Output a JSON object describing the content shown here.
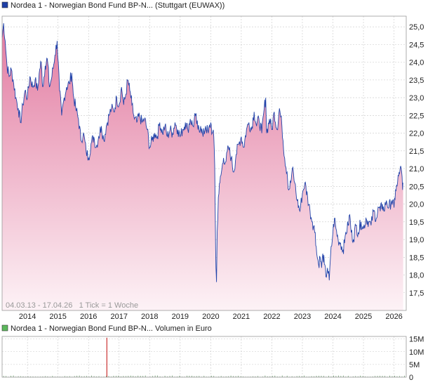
{
  "price_panel": {
    "legend_text": "Nordea 1 - Norwegian Bond Fund BP-N... (Stuttgart (EUWAX))",
    "legend_color": "#1f3fa6",
    "footer_text": "04.03.13 - 17.04.26   1 Tick = 1 Woche"
  },
  "volume_panel": {
    "legend_text": "Nordea 1 - Norwegian Bond Fund BP-N... Volumen in Euro",
    "legend_color": "#5cb85c"
  },
  "colors": {
    "line": "#2244aa",
    "fill_top": "#e27aa0",
    "fill_bottom": "#fdf2f6",
    "grid": "#c8c8c8",
    "volume_bar": "#cc3333",
    "volume_bar_small": "#669966"
  },
  "chart_data": [
    {
      "type": "area",
      "x_tick_labels": [
        "2014",
        "2015",
        "2016",
        "2017",
        "2018",
        "2019",
        "2020",
        "2021",
        "2022",
        "2023",
        "2024",
        "2025",
        "2026"
      ],
      "y_tick_labels": [
        "17,5",
        "18,0",
        "18,5",
        "19,0",
        "19,5",
        "20,0",
        "20,5",
        "21,0",
        "21,5",
        "22,0",
        "22,5",
        "23,0",
        "23,5",
        "24,0",
        "24,5",
        "25,0"
      ],
      "y_ticks": [
        17.5,
        18.0,
        18.5,
        19.0,
        19.5,
        20.0,
        20.5,
        21.0,
        21.5,
        22.0,
        22.5,
        23.0,
        23.5,
        24.0,
        24.5,
        25.0
      ],
      "ylim": [
        17.0,
        25.3
      ],
      "xlim": [
        2013.17,
        2026.4
      ],
      "grid": true,
      "series": [
        {
          "points": [
            [
              2013.17,
              24.7
            ],
            [
              2013.22,
              25.1
            ],
            [
              2013.27,
              24.6
            ],
            [
              2013.33,
              23.9
            ],
            [
              2013.4,
              23.6
            ],
            [
              2013.47,
              23.8
            ],
            [
              2013.55,
              23.4
            ],
            [
              2013.62,
              23.0
            ],
            [
              2013.7,
              22.7
            ],
            [
              2013.77,
              22.3
            ],
            [
              2013.85,
              22.8
            ],
            [
              2013.92,
              23.2
            ],
            [
              2014.0,
              23.0
            ],
            [
              2014.08,
              23.6
            ],
            [
              2014.17,
              23.3
            ],
            [
              2014.25,
              23.5
            ],
            [
              2014.33,
              23.2
            ],
            [
              2014.4,
              23.8
            ],
            [
              2014.45,
              24.0
            ],
            [
              2014.5,
              23.3
            ],
            [
              2014.58,
              23.9
            ],
            [
              2014.65,
              24.1
            ],
            [
              2014.72,
              23.3
            ],
            [
              2014.8,
              23.6
            ],
            [
              2014.9,
              24.2
            ],
            [
              2014.97,
              24.6
            ],
            [
              2015.05,
              23.2
            ],
            [
              2015.12,
              22.5
            ],
            [
              2015.2,
              23.0
            ],
            [
              2015.28,
              23.3
            ],
            [
              2015.37,
              23.4
            ],
            [
              2015.45,
              23.7
            ],
            [
              2015.5,
              23.1
            ],
            [
              2015.58,
              22.7
            ],
            [
              2015.67,
              22.4
            ],
            [
              2015.75,
              21.8
            ],
            [
              2015.83,
              22.0
            ],
            [
              2015.92,
              21.5
            ],
            [
              2016.0,
              21.3
            ],
            [
              2016.08,
              21.7
            ],
            [
              2016.17,
              21.9
            ],
            [
              2016.25,
              21.6
            ],
            [
              2016.33,
              21.9
            ],
            [
              2016.42,
              22.2
            ],
            [
              2016.5,
              21.8
            ],
            [
              2016.58,
              22.2
            ],
            [
              2016.67,
              22.5
            ],
            [
              2016.75,
              22.7
            ],
            [
              2016.83,
              22.6
            ],
            [
              2016.92,
              23.0
            ],
            [
              2017.0,
              22.8
            ],
            [
              2017.08,
              23.3
            ],
            [
              2017.15,
              22.8
            ],
            [
              2017.22,
              23.1
            ],
            [
              2017.28,
              23.5
            ],
            [
              2017.35,
              23.2
            ],
            [
              2017.42,
              22.8
            ],
            [
              2017.5,
              22.4
            ],
            [
              2017.58,
              22.3
            ],
            [
              2017.67,
              22.5
            ],
            [
              2017.75,
              22.3
            ],
            [
              2017.83,
              22.4
            ],
            [
              2017.92,
              22.1
            ],
            [
              2018.0,
              21.6
            ],
            [
              2018.08,
              21.8
            ],
            [
              2018.17,
              22.0
            ],
            [
              2018.25,
              21.9
            ],
            [
              2018.33,
              22.3
            ],
            [
              2018.42,
              22.0
            ],
            [
              2018.5,
              22.2
            ],
            [
              2018.58,
              21.9
            ],
            [
              2018.67,
              22.1
            ],
            [
              2018.75,
              22.0
            ],
            [
              2018.83,
              22.3
            ],
            [
              2018.92,
              22.1
            ],
            [
              2019.0,
              21.9
            ],
            [
              2019.08,
              22.1
            ],
            [
              2019.17,
              22.3
            ],
            [
              2019.25,
              22.1
            ],
            [
              2019.33,
              22.4
            ],
            [
              2019.42,
              22.2
            ],
            [
              2019.5,
              22.5
            ],
            [
              2019.58,
              22.1
            ],
            [
              2019.67,
              22.2
            ],
            [
              2019.75,
              21.9
            ],
            [
              2019.83,
              22.2
            ],
            [
              2019.92,
              22.0
            ],
            [
              2020.0,
              22.3
            ],
            [
              2020.05,
              22.0
            ],
            [
              2020.1,
              21.9
            ],
            [
              2020.13,
              21.1
            ],
            [
              2020.15,
              19.5
            ],
            [
              2020.17,
              18.2
            ],
            [
              2020.19,
              17.8
            ],
            [
              2020.21,
              19.2
            ],
            [
              2020.25,
              20.2
            ],
            [
              2020.3,
              20.6
            ],
            [
              2020.35,
              20.9
            ],
            [
              2020.42,
              21.3
            ],
            [
              2020.5,
              21.2
            ],
            [
              2020.58,
              21.6
            ],
            [
              2020.67,
              21.3
            ],
            [
              2020.75,
              20.9
            ],
            [
              2020.83,
              21.4
            ],
            [
              2020.92,
              21.7
            ],
            [
              2021.0,
              21.9
            ],
            [
              2021.08,
              21.6
            ],
            [
              2021.17,
              22.1
            ],
            [
              2021.25,
              22.3
            ],
            [
              2021.33,
              22.1
            ],
            [
              2021.42,
              22.6
            ],
            [
              2021.5,
              22.2
            ],
            [
              2021.58,
              22.4
            ],
            [
              2021.67,
              22.0
            ],
            [
              2021.75,
              22.7
            ],
            [
              2021.8,
              23.0
            ],
            [
              2021.83,
              22.0
            ],
            [
              2021.92,
              22.4
            ],
            [
              2022.0,
              22.1
            ],
            [
              2022.08,
              22.6
            ],
            [
              2022.17,
              22.1
            ],
            [
              2022.25,
              22.7
            ],
            [
              2022.33,
              22.2
            ],
            [
              2022.42,
              21.3
            ],
            [
              2022.5,
              20.9
            ],
            [
              2022.55,
              20.4
            ],
            [
              2022.62,
              20.6
            ],
            [
              2022.67,
              21.0
            ],
            [
              2022.75,
              20.6
            ],
            [
              2022.83,
              20.1
            ],
            [
              2022.92,
              19.8
            ],
            [
              2023.0,
              20.3
            ],
            [
              2023.08,
              20.6
            ],
            [
              2023.17,
              20.2
            ],
            [
              2023.25,
              19.8
            ],
            [
              2023.33,
              19.5
            ],
            [
              2023.42,
              19.2
            ],
            [
              2023.47,
              18.6
            ],
            [
              2023.53,
              18.3
            ],
            [
              2023.58,
              18.5
            ],
            [
              2023.63,
              18.2
            ],
            [
              2023.67,
              18.6
            ],
            [
              2023.72,
              18.3
            ],
            [
              2023.77,
              17.95
            ],
            [
              2023.82,
              18.2
            ],
            [
              2023.88,
              17.85
            ],
            [
              2023.92,
              18.5
            ],
            [
              2024.0,
              19.2
            ],
            [
              2024.05,
              19.6
            ],
            [
              2024.1,
              19.3
            ],
            [
              2024.17,
              19.0
            ],
            [
              2024.25,
              18.9
            ],
            [
              2024.33,
              18.7
            ],
            [
              2024.38,
              18.9
            ],
            [
              2024.42,
              19.2
            ],
            [
              2024.5,
              19.4
            ],
            [
              2024.55,
              19.7
            ],
            [
              2024.6,
              19.2
            ],
            [
              2024.67,
              19.0
            ],
            [
              2024.75,
              19.4
            ],
            [
              2024.83,
              19.2
            ],
            [
              2024.92,
              19.5
            ],
            [
              2025.0,
              19.3
            ],
            [
              2025.08,
              19.6
            ],
            [
              2025.17,
              19.5
            ],
            [
              2025.25,
              19.4
            ],
            [
              2025.33,
              19.8
            ],
            [
              2025.42,
              19.6
            ],
            [
              2025.5,
              19.9
            ],
            [
              2025.55,
              19.8
            ],
            [
              2025.62,
              20.0
            ],
            [
              2025.67,
              19.8
            ],
            [
              2025.75,
              20.1
            ],
            [
              2025.83,
              19.9
            ],
            [
              2025.92,
              20.1
            ],
            [
              2026.0,
              19.9
            ],
            [
              2026.05,
              20.4
            ],
            [
              2026.1,
              20.5
            ],
            [
              2026.15,
              20.8
            ],
            [
              2026.2,
              21.0
            ],
            [
              2026.25,
              20.9
            ],
            [
              2026.28,
              20.4
            ],
            [
              2026.3,
              20.6
            ]
          ]
        }
      ]
    },
    {
      "type": "bar",
      "y_tick_labels": [
        "0",
        "5M",
        "10M",
        "15M"
      ],
      "y_ticks": [
        0,
        5,
        10,
        15
      ],
      "ylim": [
        0,
        16
      ],
      "grid": true,
      "bars": [
        [
          2016.6,
          15.5
        ]
      ],
      "baseline_noise": true
    }
  ]
}
